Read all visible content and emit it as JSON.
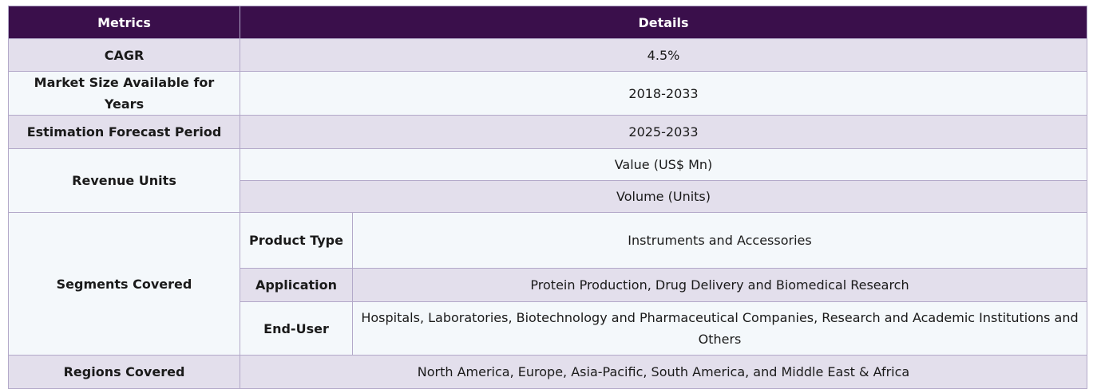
{
  "header": {
    "metrics": "Metrics",
    "details": "Details"
  },
  "rows": {
    "cagr": {
      "label": "CAGR",
      "value": "4.5%"
    },
    "market_size": {
      "label": "Market Size Available for Years",
      "value": "2018-2033"
    },
    "forecast": {
      "label": "Estimation Forecast Period",
      "value": "2025-2033"
    },
    "revenue_units": {
      "label": "Revenue Units",
      "values": [
        "Value (US$ Mn)",
        "Volume (Units)"
      ]
    },
    "segments": {
      "label": "Segments Covered",
      "items": [
        {
          "name": "Product Type",
          "value": "Instruments and Accessories"
        },
        {
          "name": "Application",
          "value": "Protein Production, Drug Delivery and Biomedical Research"
        },
        {
          "name": "End-User",
          "value": "Hospitals, Laboratories, Biotechnology and Pharmaceutical Companies, Research and Academic Institutions and Others"
        }
      ]
    },
    "regions": {
      "label": "Regions Covered",
      "value": "North America, Europe, Asia-Pacific, South America, and Middle East & Africa"
    }
  }
}
